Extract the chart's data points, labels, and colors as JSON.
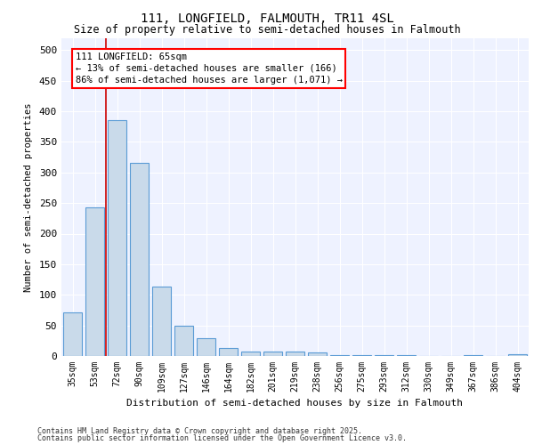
{
  "title1": "111, LONGFIELD, FALMOUTH, TR11 4SL",
  "title2": "Size of property relative to semi-detached houses in Falmouth",
  "xlabel": "Distribution of semi-detached houses by size in Falmouth",
  "ylabel": "Number of semi-detached properties",
  "categories": [
    "35sqm",
    "53sqm",
    "72sqm",
    "90sqm",
    "109sqm",
    "127sqm",
    "146sqm",
    "164sqm",
    "182sqm",
    "201sqm",
    "219sqm",
    "238sqm",
    "256sqm",
    "275sqm",
    "293sqm",
    "312sqm",
    "330sqm",
    "349sqm",
    "367sqm",
    "386sqm",
    "404sqm"
  ],
  "values": [
    72,
    243,
    385,
    315,
    113,
    50,
    29,
    13,
    7,
    7,
    7,
    6,
    2,
    1,
    1,
    1,
    0,
    0,
    1,
    0,
    3
  ],
  "bar_color": "#c9daea",
  "bar_edge_color": "#5a9bd5",
  "vline_x": 1.5,
  "annotation_line1": "111 LONGFIELD: 65sqm",
  "annotation_line2": "← 13% of semi-detached houses are smaller (166)",
  "annotation_line3": "86% of semi-detached houses are larger (1,071) →",
  "vline_color": "#cc0000",
  "footer_line1": "Contains HM Land Registry data © Crown copyright and database right 2025.",
  "footer_line2": "Contains public sector information licensed under the Open Government Licence v3.0.",
  "bg_color": "#eef2ff",
  "grid_color": "#ffffff",
  "ylim": [
    0,
    520
  ],
  "yticks": [
    0,
    50,
    100,
    150,
    200,
    250,
    300,
    350,
    400,
    450,
    500
  ]
}
